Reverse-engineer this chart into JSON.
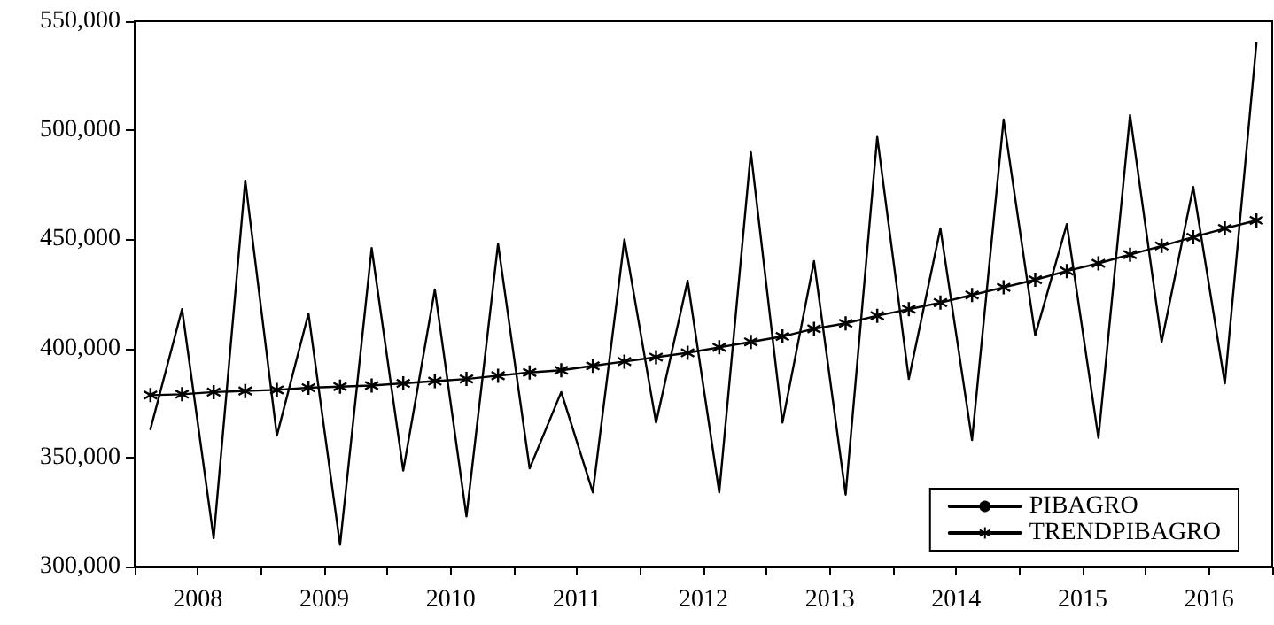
{
  "chart_data": {
    "type": "line",
    "x": [
      2008.125,
      2008.375,
      2008.625,
      2008.875,
      2009.125,
      2009.375,
      2009.625,
      2009.875,
      2010.125,
      2010.375,
      2010.625,
      2010.875,
      2011.125,
      2011.375,
      2011.625,
      2011.875,
      2012.125,
      2012.375,
      2012.625,
      2012.875,
      2013.125,
      2013.375,
      2013.625,
      2013.875,
      2014.125,
      2014.375,
      2014.625,
      2014.875,
      2015.125,
      2015.375,
      2015.625,
      2015.875,
      2016.125,
      2016.375,
      2016.625,
      2016.875
    ],
    "series": [
      {
        "name": "PIBAGRO",
        "color": "#000000",
        "marker": "none",
        "values": [
          363000,
          418000,
          313000,
          477000,
          360000,
          416000,
          310000,
          446000,
          344000,
          427000,
          323000,
          448000,
          345000,
          380000,
          334000,
          450000,
          366000,
          431000,
          334000,
          490000,
          366000,
          440000,
          333000,
          497000,
          386000,
          455000,
          358000,
          505000,
          406000,
          457000,
          359000,
          507000,
          403000,
          474000,
          384000,
          540000
        ]
      },
      {
        "name": "TRENDPIBAGRO",
        "color": "#000000",
        "marker": "star",
        "values": [
          378600,
          379000,
          380000,
          380500,
          381000,
          382000,
          382500,
          383000,
          384000,
          385000,
          386000,
          387500,
          389000,
          390000,
          392000,
          394000,
          396000,
          398000,
          400500,
          403000,
          405500,
          409000,
          411500,
          415000,
          418000,
          421000,
          424500,
          428000,
          431500,
          435500,
          439000,
          443000,
          447000,
          451000,
          455000,
          458700
        ]
      }
    ],
    "xlim": [
      2008,
      2017
    ],
    "xticks": [
      {
        "value": 2008,
        "label": null
      },
      {
        "value": 2008.5,
        "label": "2008"
      },
      {
        "value": 2009,
        "label": null
      },
      {
        "value": 2009.5,
        "label": "2009"
      },
      {
        "value": 2010,
        "label": null
      },
      {
        "value": 2010.5,
        "label": "2010"
      },
      {
        "value": 2011,
        "label": null
      },
      {
        "value": 2011.5,
        "label": "2011"
      },
      {
        "value": 2012,
        "label": null
      },
      {
        "value": 2012.5,
        "label": "2012"
      },
      {
        "value": 2013,
        "label": null
      },
      {
        "value": 2013.5,
        "label": "2013"
      },
      {
        "value": 2014,
        "label": null
      },
      {
        "value": 2014.5,
        "label": "2014"
      },
      {
        "value": 2015,
        "label": null
      },
      {
        "value": 2015.5,
        "label": "2015"
      },
      {
        "value": 2016,
        "label": null
      },
      {
        "value": 2016.5,
        "label": "2016"
      },
      {
        "value": 2017,
        "label": null
      }
    ],
    "ylim": [
      300000,
      550000
    ],
    "yticks": [
      {
        "value": 300000,
        "label": "300,000"
      },
      {
        "value": 350000,
        "label": "350,000"
      },
      {
        "value": 400000,
        "label": "400,000"
      },
      {
        "value": 450000,
        "label": "450,000"
      },
      {
        "value": 500000,
        "label": "500,000"
      },
      {
        "value": 550000,
        "label": "550,000"
      }
    ],
    "grid": false,
    "legend": "bottom right",
    "line_style": "solid"
  }
}
